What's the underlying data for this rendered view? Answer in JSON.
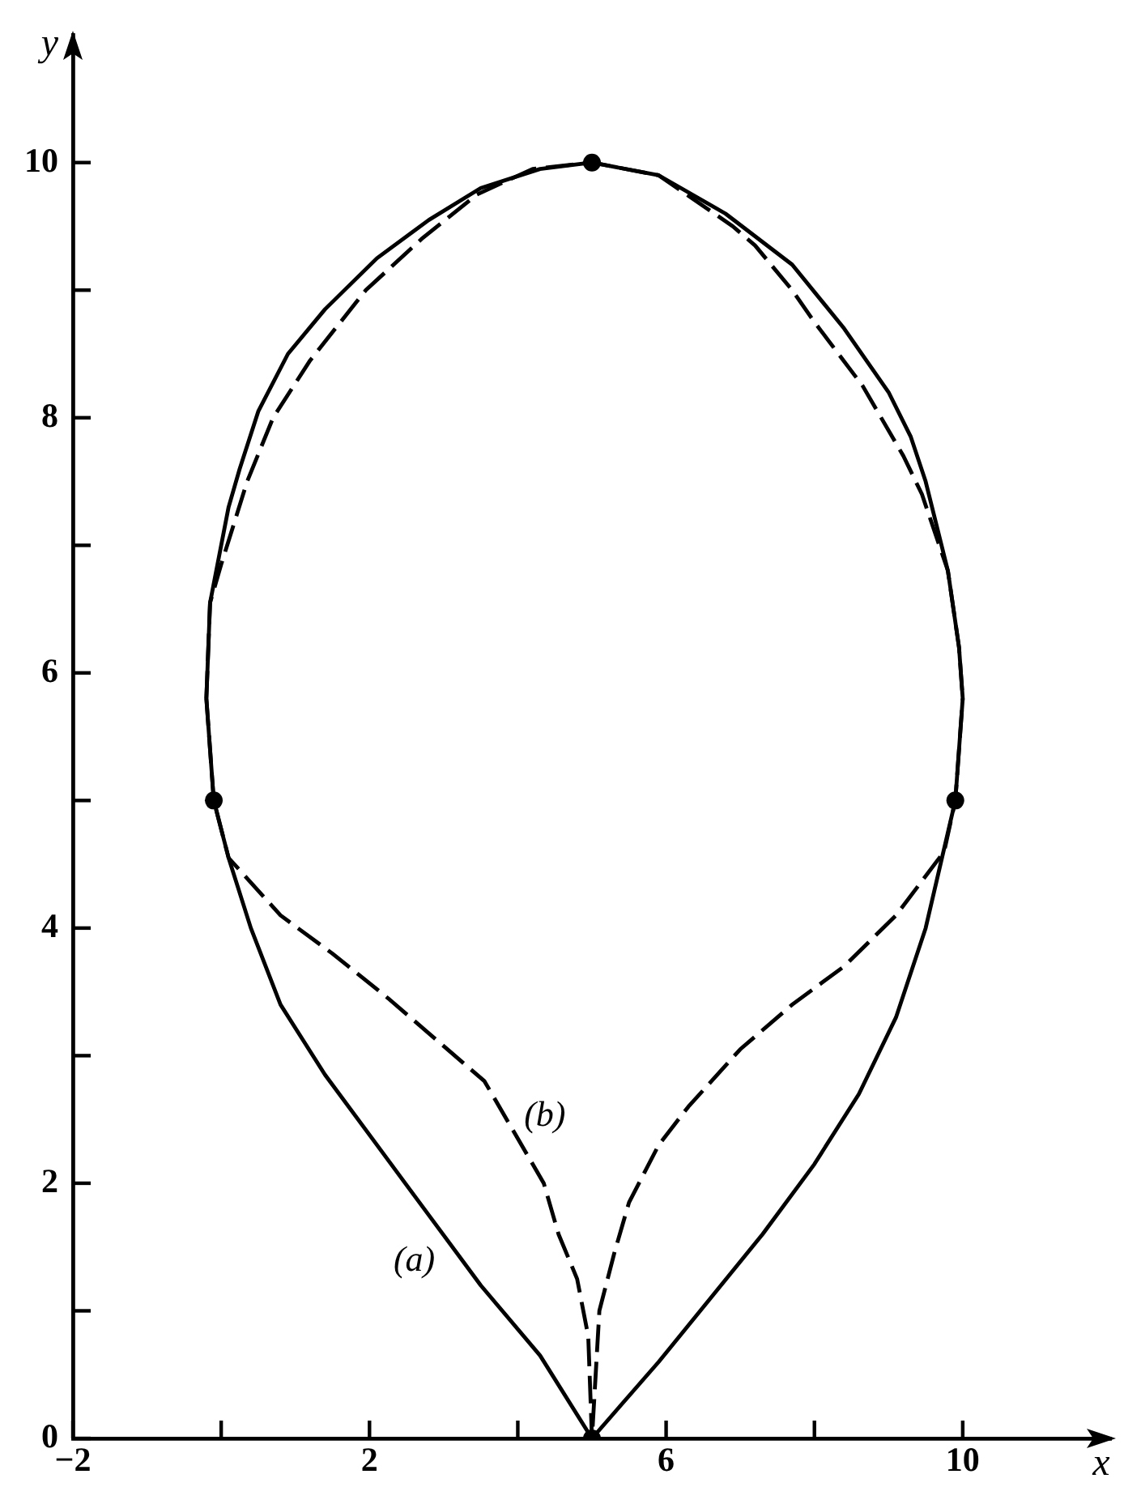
{
  "chart_data": {
    "type": "line",
    "xlabel": "x",
    "ylabel": "y",
    "xlim": [
      -2,
      12
    ],
    "ylim": [
      0,
      11
    ],
    "xticks": [
      {
        "value": -2,
        "label": "−2"
      },
      {
        "value": 0,
        "label": null
      },
      2,
      {
        "value": 4,
        "label": null
      },
      6,
      {
        "value": 8,
        "label": null
      },
      10
    ],
    "yticks": [
      0,
      {
        "value": 1,
        "label": null
      },
      2,
      {
        "value": 3,
        "label": null
      },
      4,
      {
        "value": 5,
        "label": null
      },
      6,
      {
        "value": 7,
        "label": null
      },
      8,
      {
        "value": 9,
        "label": null
      },
      10
    ],
    "series": [
      {
        "name": "(a)",
        "color": "#000000",
        "line_style": "solid",
        "x": [
          -0.2,
          -0.15,
          0,
          0.1,
          0.25,
          0.5,
          0.9,
          1.4,
          2.1,
          2.8,
          3.5,
          4.3,
          5,
          5.9,
          6.8,
          7.7,
          8.4,
          9.0,
          9.3,
          9.5,
          9.8,
          9.95,
          10.0,
          null,
          -0.2,
          -0.1,
          0.1,
          0.4,
          0.8,
          1.4,
          2.1,
          2.8,
          3.5,
          4.3,
          5,
          5.9,
          6.6,
          7.3,
          8.0,
          8.6,
          9.1,
          9.5,
          9.7,
          9.9,
          10.0
        ],
        "values": [
          5.8,
          6.55,
          7.0,
          7.3,
          7.6,
          8.05,
          8.5,
          8.85,
          9.25,
          9.55,
          9.8,
          9.95,
          10,
          9.9,
          9.6,
          9.2,
          8.7,
          8.2,
          7.85,
          7.5,
          6.8,
          6.2,
          5.8,
          null,
          5.8,
          5,
          4.55,
          4.0,
          3.4,
          2.85,
          2.3,
          1.75,
          1.2,
          0.65,
          0,
          0.6,
          1.1,
          1.6,
          2.15,
          2.7,
          3.3,
          4.0,
          4.5,
          5,
          5.8
        ]
      },
      {
        "name": "(b)",
        "color": "#000000",
        "line_style": "dashed",
        "x": [
          -0.2,
          -0.15,
          0.0,
          0.35,
          0.7,
          1.2,
          1.95,
          2.7,
          3.45,
          4.2,
          5,
          5.9,
          6.9,
          7.2,
          7.7,
          8.0,
          8.65,
          9.2,
          9.45,
          9.8,
          9.95,
          10.0,
          null,
          -0.2,
          -0.1,
          0.1,
          0.8,
          1.5,
          2.25,
          2.95,
          3.55,
          4.0,
          4.35,
          4.55,
          4.8,
          4.95,
          5,
          5.05,
          5.1,
          5.3,
          5.5,
          5.9,
          6.3,
          7.0,
          7.7,
          8.4,
          9.1,
          9.75,
          9.9,
          10.0
        ],
        "values": [
          5.8,
          6.55,
          6.85,
          7.5,
          8.0,
          8.45,
          9.0,
          9.4,
          9.75,
          9.95,
          10,
          9.9,
          9.5,
          9.35,
          9.0,
          8.75,
          8.25,
          7.7,
          7.4,
          6.8,
          6.2,
          5.8,
          null,
          5.8,
          5,
          4.55,
          4.1,
          3.8,
          3.45,
          3.1,
          2.8,
          2.35,
          2.0,
          1.6,
          1.25,
          0.8,
          0,
          0.5,
          1.0,
          1.45,
          1.85,
          2.3,
          2.6,
          3.05,
          3.4,
          3.7,
          4.1,
          4.6,
          5,
          5.8
        ]
      },
      {
        "type": "scatter",
        "color": "#000000",
        "marker": "circle",
        "x": [
          5,
          -0.1,
          9.9,
          5
        ],
        "values": [
          10,
          5,
          5,
          0
        ]
      }
    ]
  }
}
